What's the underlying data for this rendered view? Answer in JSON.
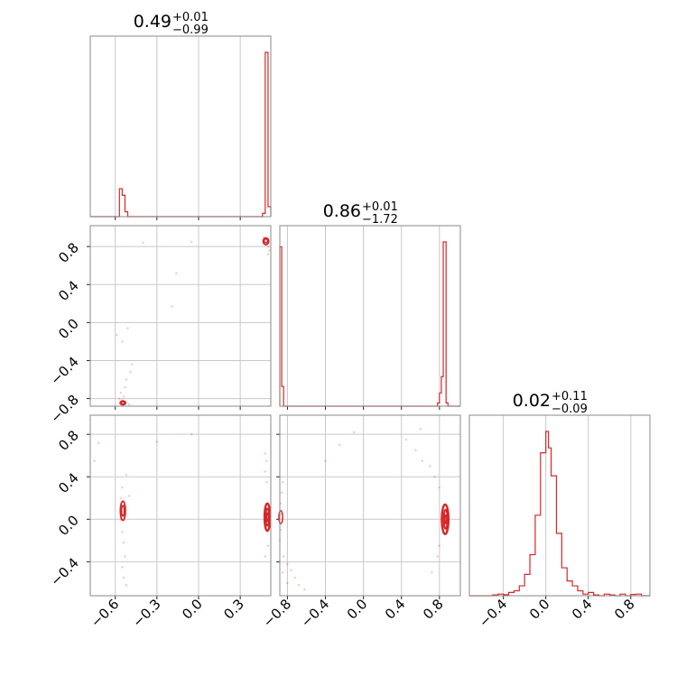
{
  "chart_data": {
    "type": "corner",
    "color": "#d62728",
    "parameters": [
      {
        "index": 0,
        "median": "0.49",
        "plus": "+0.01",
        "minus": "−0.99",
        "range": [
          -0.78,
          0.52
        ]
      },
      {
        "index": 1,
        "median": "0.86",
        "plus": "+0.01",
        "minus": "−1.72",
        "range": [
          -0.88,
          1.02
        ]
      },
      {
        "index": 2,
        "median": "0.02",
        "plus": "+0.11",
        "minus": "−0.09",
        "range": [
          -0.72,
          0.98
        ]
      }
    ],
    "ticks": {
      "x0": [
        -0.6,
        -0.3,
        0.0,
        0.3
      ],
      "x1": [
        -0.8,
        -0.4,
        0.0,
        0.4,
        0.8
      ],
      "x2": [
        -0.4,
        0.0,
        0.4,
        0.8
      ],
      "y1": [
        0.8,
        0.4,
        0.0,
        -0.4,
        -0.8
      ],
      "y2": [
        0.8,
        0.4,
        0.0,
        -0.4
      ]
    },
    "tick_labels": {
      "x0": [
        "−0.6",
        "−0.3",
        "0.0",
        "0.3"
      ],
      "x1": [
        "−0.8",
        "−0.4",
        "0.0",
        "0.4",
        "0.8"
      ],
      "x2": [
        "−0.4",
        "0.0",
        "0.4",
        "0.8"
      ],
      "y1": [
        "0.8",
        "0.4",
        "0.0",
        "−0.4",
        "−0.8"
      ],
      "y2": [
        "0.8",
        "0.4",
        "0.0",
        "−0.4"
      ]
    },
    "histograms": [
      {
        "param": 0,
        "bins": [
          {
            "x0": -0.57,
            "x1": -0.55,
            "h": 0.17
          },
          {
            "x0": -0.55,
            "x1": -0.53,
            "h": 0.13
          },
          {
            "x0": -0.53,
            "x1": -0.51,
            "h": 0.03
          },
          {
            "x0": 0.46,
            "x1": 0.48,
            "h": 0.02
          },
          {
            "x0": 0.48,
            "x1": 0.5,
            "h": 1.0
          },
          {
            "x0": 0.5,
            "x1": 0.52,
            "h": 0.06
          }
        ]
      },
      {
        "param": 1,
        "bins": [
          {
            "x0": -0.88,
            "x1": -0.86,
            "h": 0.97
          },
          {
            "x0": -0.86,
            "x1": -0.84,
            "h": 0.12
          },
          {
            "x0": 0.78,
            "x1": 0.8,
            "h": 0.02
          },
          {
            "x0": 0.8,
            "x1": 0.82,
            "h": 0.08
          },
          {
            "x0": 0.82,
            "x1": 0.84,
            "h": 0.18
          },
          {
            "x0": 0.84,
            "x1": 0.87,
            "h": 1.0
          },
          {
            "x0": 0.87,
            "x1": 0.89,
            "h": 0.02
          }
        ]
      },
      {
        "param": 2,
        "bins": [
          {
            "x0": -0.5,
            "x1": -0.45,
            "h": 0.005
          },
          {
            "x0": -0.45,
            "x1": -0.4,
            "h": 0.01
          },
          {
            "x0": -0.4,
            "x1": -0.35,
            "h": 0.006
          },
          {
            "x0": -0.35,
            "x1": -0.3,
            "h": 0.02
          },
          {
            "x0": -0.3,
            "x1": -0.25,
            "h": 0.03
          },
          {
            "x0": -0.25,
            "x1": -0.2,
            "h": 0.06
          },
          {
            "x0": -0.2,
            "x1": -0.15,
            "h": 0.13
          },
          {
            "x0": -0.15,
            "x1": -0.1,
            "h": 0.25
          },
          {
            "x0": -0.1,
            "x1": -0.05,
            "h": 0.49
          },
          {
            "x0": -0.05,
            "x1": 0.0,
            "h": 0.87
          },
          {
            "x0": 0.0,
            "x1": 0.025,
            "h": 1.0
          },
          {
            "x0": 0.025,
            "x1": 0.05,
            "h": 0.9
          },
          {
            "x0": 0.05,
            "x1": 0.1,
            "h": 0.73
          },
          {
            "x0": 0.1,
            "x1": 0.15,
            "h": 0.38
          },
          {
            "x0": 0.15,
            "x1": 0.2,
            "h": 0.17
          },
          {
            "x0": 0.2,
            "x1": 0.25,
            "h": 0.09
          },
          {
            "x0": 0.25,
            "x1": 0.3,
            "h": 0.06
          },
          {
            "x0": 0.3,
            "x1": 0.35,
            "h": 0.03
          },
          {
            "x0": 0.35,
            "x1": 0.4,
            "h": 0.01
          },
          {
            "x0": 0.4,
            "x1": 0.45,
            "h": 0.02
          },
          {
            "x0": 0.45,
            "x1": 0.5,
            "h": 0.005
          },
          {
            "x0": 0.55,
            "x1": 0.6,
            "h": 0.01
          },
          {
            "x0": 0.6,
            "x1": 0.65,
            "h": 0.005
          },
          {
            "x0": 0.7,
            "x1": 0.75,
            "h": 0.01
          },
          {
            "x0": 0.8,
            "x1": 0.85,
            "h": 0.008
          },
          {
            "x0": 0.85,
            "x1": 0.9,
            "h": 0.01
          }
        ]
      }
    ],
    "scatter_panels": [
      {
        "xp": 0,
        "yp": 1,
        "points": [
          [
            -0.56,
            -0.85
          ],
          [
            -0.55,
            -0.82
          ],
          [
            -0.56,
            -0.74
          ],
          [
            -0.53,
            -0.68
          ],
          [
            -0.52,
            -0.6
          ],
          [
            -0.49,
            -0.52
          ],
          [
            -0.48,
            -0.44
          ],
          [
            -0.55,
            -0.2
          ],
          [
            -0.59,
            -0.13
          ],
          [
            -0.51,
            -0.06
          ],
          [
            -0.19,
            0.17
          ],
          [
            -0.16,
            0.52
          ],
          [
            0.5,
            0.8
          ],
          [
            0.51,
            0.76
          ],
          [
            0.5,
            0.72
          ],
          [
            0.49,
            0.84
          ],
          [
            -0.4,
            0.84
          ],
          [
            -0.05,
            0.85
          ],
          [
            0.47,
            0.9
          ],
          [
            -0.57,
            -0.8
          ],
          [
            -0.54,
            -0.78
          ],
          [
            -0.5,
            -0.86
          ]
        ],
        "contours": [
          {
            "cx": -0.545,
            "cy": -0.845,
            "rx": 0.02,
            "ry": 0.02,
            "w": 1.8
          },
          {
            "cx": -0.545,
            "cy": -0.845,
            "rx": 0.012,
            "ry": 0.012,
            "w": 1.5
          },
          {
            "cx": 0.485,
            "cy": 0.855,
            "rx": 0.02,
            "ry": 0.035,
            "w": 1.8
          },
          {
            "cx": 0.485,
            "cy": 0.86,
            "rx": 0.012,
            "ry": 0.02,
            "w": 1.5
          }
        ]
      },
      {
        "xp": 0,
        "yp": 2,
        "points": [
          [
            -0.75,
            0.55
          ],
          [
            -0.72,
            0.72
          ],
          [
            -0.52,
            0.42
          ],
          [
            -0.55,
            0.3
          ],
          [
            -0.53,
            -0.35
          ],
          [
            -0.55,
            -0.45
          ],
          [
            -0.54,
            -0.55
          ],
          [
            -0.52,
            -0.62
          ],
          [
            -0.56,
            0.2
          ],
          [
            -0.5,
            0.22
          ],
          [
            -0.54,
            -0.22
          ],
          [
            -0.55,
            -0.12
          ],
          [
            -0.3,
            0.73
          ],
          [
            -0.05,
            0.8
          ],
          [
            0.48,
            0.62
          ],
          [
            0.48,
            0.45
          ],
          [
            0.49,
            0.35
          ],
          [
            0.5,
            -0.25
          ],
          [
            0.48,
            -0.35
          ],
          [
            0.49,
            0.55
          ],
          [
            -0.56,
            0.0
          ],
          [
            -0.53,
            0.05
          ]
        ],
        "contours": [
          {
            "cx": -0.545,
            "cy": 0.08,
            "rx": 0.018,
            "ry": 0.09,
            "w": 1.8
          },
          {
            "cx": -0.545,
            "cy": 0.08,
            "rx": 0.01,
            "ry": 0.05,
            "w": 1.6
          },
          {
            "cx": 0.495,
            "cy": 0.02,
            "rx": 0.02,
            "ry": 0.13,
            "w": 2.4
          },
          {
            "cx": 0.495,
            "cy": 0.02,
            "rx": 0.013,
            "ry": 0.08,
            "w": 2.0
          },
          {
            "cx": 0.495,
            "cy": 0.02,
            "rx": 0.007,
            "ry": 0.04,
            "w": 1.8
          }
        ]
      },
      {
        "xp": 1,
        "yp": 2,
        "points": [
          [
            -0.87,
            0.15
          ],
          [
            -0.87,
            -0.1
          ],
          [
            -0.86,
            0.25
          ],
          [
            -0.88,
            -0.2
          ],
          [
            -0.85,
            0.35
          ],
          [
            -0.84,
            -0.35
          ],
          [
            -0.8,
            -0.42
          ],
          [
            -0.76,
            -0.48
          ],
          [
            -0.72,
            -0.55
          ],
          [
            -0.68,
            -0.62
          ],
          [
            -0.62,
            -0.66
          ],
          [
            -0.85,
            -0.5
          ],
          [
            -0.8,
            -0.6
          ],
          [
            -0.4,
            0.55
          ],
          [
            -0.25,
            0.7
          ],
          [
            -0.1,
            0.82
          ],
          [
            0.45,
            0.75
          ],
          [
            0.55,
            0.65
          ],
          [
            0.62,
            0.55
          ],
          [
            0.7,
            0.5
          ],
          [
            0.75,
            0.4
          ],
          [
            0.8,
            0.3
          ],
          [
            0.8,
            -0.25
          ],
          [
            0.78,
            -0.35
          ],
          [
            0.72,
            -0.5
          ],
          [
            0.6,
            0.85
          ],
          [
            -0.87,
            0.05
          ]
        ],
        "contours": [
          {
            "cx": -0.87,
            "cy": 0.02,
            "rx": 0.02,
            "ry": 0.06,
            "w": 1.5
          },
          {
            "cx": 0.86,
            "cy": 0.0,
            "rx": 0.035,
            "ry": 0.14,
            "w": 2.4
          },
          {
            "cx": 0.865,
            "cy": 0.0,
            "rx": 0.02,
            "ry": 0.09,
            "w": 2.0
          },
          {
            "cx": 0.865,
            "cy": 0.0,
            "rx": 0.01,
            "ry": 0.04,
            "w": 1.8
          }
        ]
      }
    ]
  }
}
